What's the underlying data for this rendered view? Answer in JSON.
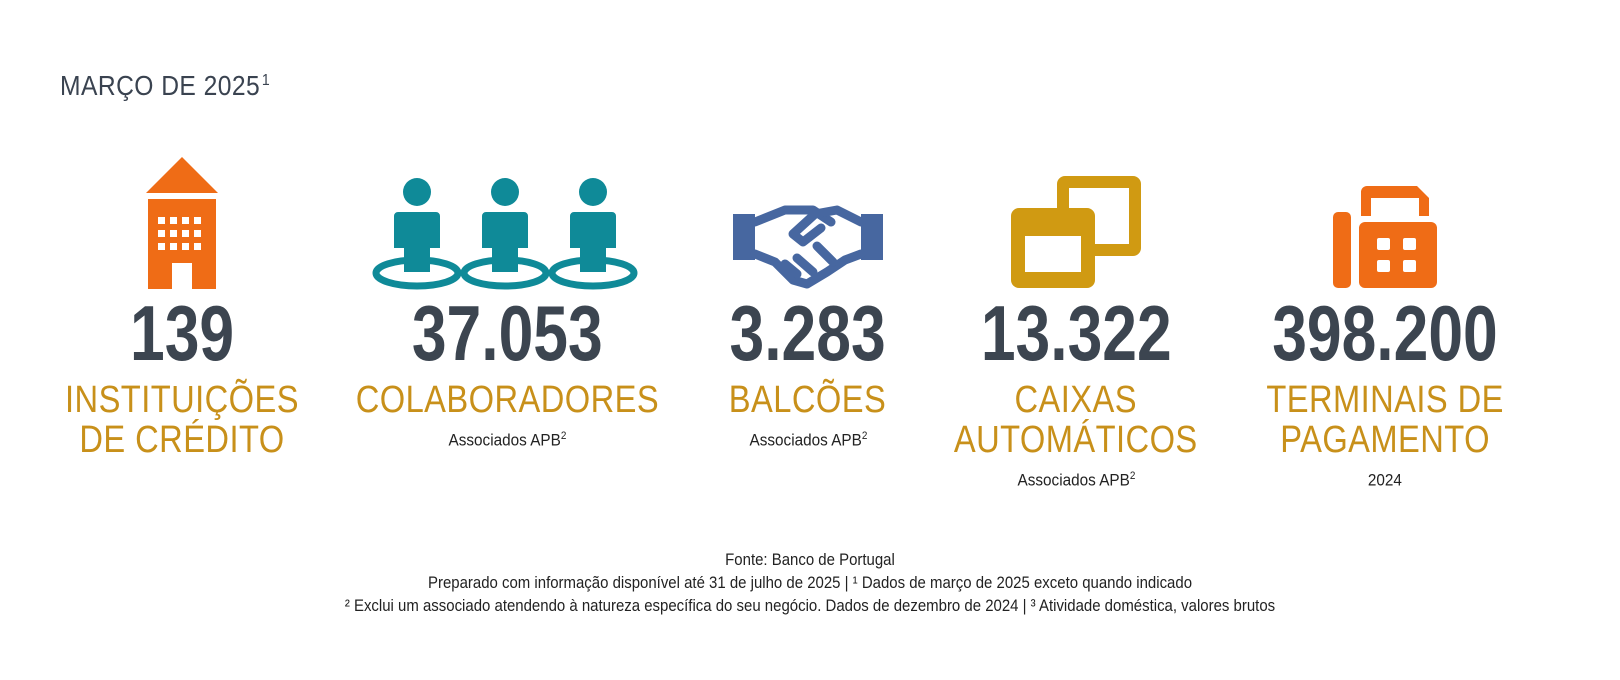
{
  "header": {
    "title": "MARÇO DE 2025",
    "title_sup": "1"
  },
  "colors": {
    "orange": "#ef6c16",
    "teal": "#0f8a98",
    "blue": "#4767a0",
    "gold": "#c8901a",
    "dark": "#3c4550"
  },
  "stats": [
    {
      "value": "139",
      "label": "INSTITUIÇÕES\nDE CRÉDITO",
      "note": "",
      "note_sup": "",
      "icon": "building-icon"
    },
    {
      "value": "37.053",
      "label": "COLABORADORES",
      "note": "Associados APB",
      "note_sup": "2",
      "icon": "people-icon"
    },
    {
      "value": "3.283",
      "label": "BALCÕES",
      "note": "Associados APB",
      "note_sup": "2",
      "icon": "handshake-icon"
    },
    {
      "value": "13.322",
      "label": "CAIXAS\nAUTOMÁTICOS",
      "note": "Associados APB",
      "note_sup": "2",
      "icon": "atm-icon"
    },
    {
      "value": "398.200",
      "label": "TERMINAIS DE\nPAGAMENTO",
      "note": "2024",
      "note_sup": "",
      "icon": "payment-terminal-icon"
    }
  ],
  "footer": {
    "line1": "Fonte: Banco de Portugal",
    "line2": "Preparado com informação disponível até 31 de julho de 2025  |  ¹ Dados de março de 2025 exceto quando indicado",
    "line3": "² Exclui um associado atendendo à natureza específica do seu negócio. Dados de dezembro de 2024  |  ³ Atividade doméstica, valores brutos"
  }
}
